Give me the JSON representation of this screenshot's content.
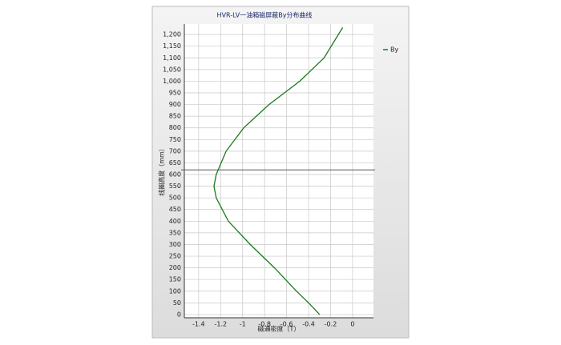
{
  "chart_data": {
    "type": "line",
    "title": "HVR-LV一油箱磁屏蔽By分布曲线",
    "x_label": "磁通密度（T）",
    "y_label": "线圈高度（mm）",
    "series": [
      {
        "name": "By",
        "color": "#1a7a1a",
        "x": [
          -0.3,
          -0.4,
          -0.51,
          -0.71,
          -0.93,
          -1.13,
          -1.24,
          -1.26,
          -1.24,
          -1.15,
          -0.99,
          -0.76,
          -0.48,
          -0.26,
          -0.09
        ],
        "values": [
          0,
          50,
          100,
          200,
          300,
          400,
          500,
          550,
          600,
          700,
          800,
          900,
          1000,
          1100,
          1230
        ]
      }
    ],
    "hline": 620,
    "xlim": [
      -1.53,
      0.19
    ],
    "ylim": [
      -14,
      1245
    ],
    "xticks": [
      -1.4,
      -1.2,
      -1,
      -0.8,
      -0.6,
      -0.4,
      -0.2,
      0
    ],
    "yticks": [
      0,
      50,
      100,
      150,
      200,
      250,
      300,
      350,
      400,
      450,
      500,
      550,
      600,
      650,
      700,
      750,
      800,
      850,
      900,
      950,
      {
        "value": 1000,
        "label": "1,000"
      },
      {
        "value": 1050,
        "label": "1,050"
      },
      {
        "value": 1100,
        "label": "1,100"
      },
      {
        "value": 1150,
        "label": "1,150"
      },
      {
        "value": 1200,
        "label": "1,200"
      }
    ],
    "grid": true,
    "legend": "right"
  }
}
